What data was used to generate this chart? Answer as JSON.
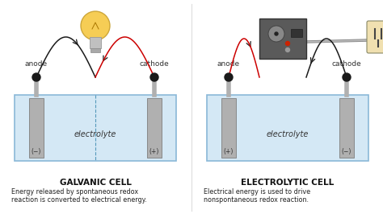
{
  "fig_width": 4.74,
  "fig_height": 2.66,
  "dpi": 100,
  "bg_color": "#ffffff",
  "cell_bg": "#d4e8f5",
  "cell_border": "#8ab8d8",
  "electrode_color": "#b0b0b0",
  "electrode_edge": "#888888",
  "title1": "GALVANIC CELL",
  "title2": "ELECTROLYTIC CELL",
  "desc1_line1": "Energy released by spontaneous redox",
  "desc1_line2": "reaction is converted to electrical energy.",
  "desc2_line1": "Electrical energy is used to drive",
  "desc2_line2": "nonspontaneous redox reaction.",
  "anode_label": "anode",
  "cathode_label": "cathode",
  "electrolyte_label": "electrolyte",
  "minus": "(−)",
  "plus": "(+)",
  "arrow_color": "#1a1a1a",
  "red_wire": "#cc0000",
  "divider_color": "#5599bb",
  "dot_color": "#1a1a1a",
  "bulb_color": "#f5c842",
  "bulb_base": "#c8c8c8",
  "device_color": "#5a5a5a",
  "device_edge": "#333333",
  "outlet_color": "#f0e0b0",
  "outlet_edge": "#888866",
  "wire_gray": "#888888"
}
